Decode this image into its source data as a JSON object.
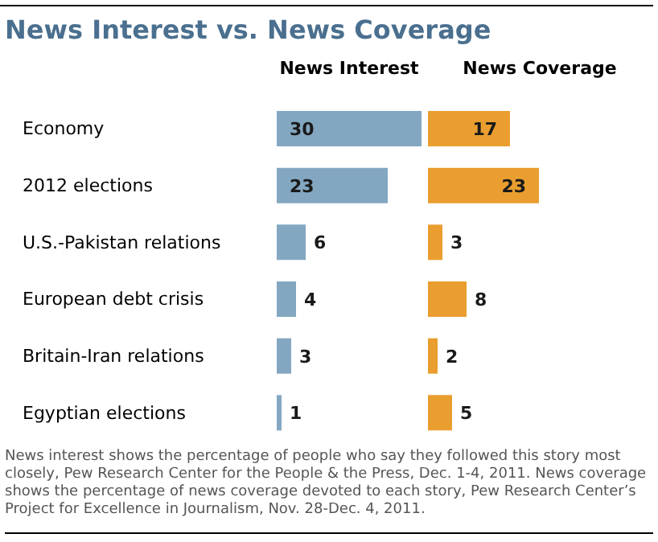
{
  "chart_data": [
    {
      "type": "bar",
      "orientation": "horizontal",
      "title": "News Interest vs. News Coverage",
      "categories": [
        "Economy",
        "2012 elections",
        "U.S.-Pakistan relations",
        "European debt crisis",
        "Britain-Iran relations",
        "Egyptian elections"
      ],
      "series": [
        {
          "name": "News Interest",
          "color": "#83a7c1",
          "values": [
            30,
            23,
            6,
            4,
            3,
            1
          ]
        }
      ],
      "data_labels": true
    },
    {
      "type": "bar",
      "orientation": "horizontal",
      "series": [
        {
          "name": "News Coverage",
          "color": "#e99e2f",
          "values": [
            17,
            23,
            3,
            8,
            2,
            5
          ]
        }
      ],
      "data_labels": true,
      "annotations": [
        "News interest shows the percentage of people who say they followed this story most closely, Pew Research Center for the People & the Press, Dec. 1-4, 2011. News coverage shows the percentage of news coverage devoted to each story, Pew Research Center’s Project for Excellence in Journalism, Nov. 28-Dec. 4, 2011."
      ]
    }
  ]
}
